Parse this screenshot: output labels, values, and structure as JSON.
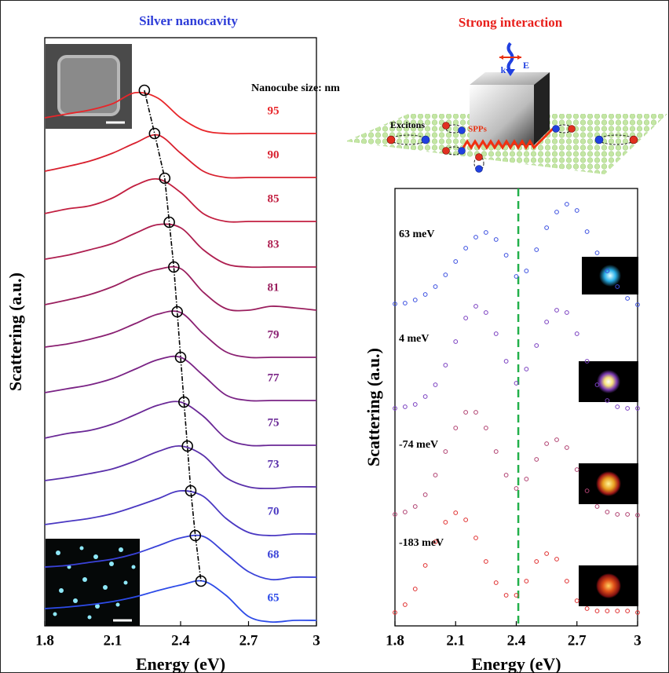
{
  "chart_data": [
    {
      "type": "line",
      "title": "Silver nanocavity",
      "title_color": "#2e3dd8",
      "x_label": "Energy (eV)",
      "y_label": "Scattering (a.u.)",
      "annotations": [
        "Nanocube size: nm"
      ],
      "x": [
        1.8,
        1.9,
        2.0,
        2.1,
        2.2,
        2.3,
        2.4,
        2.5,
        2.6,
        2.7,
        2.8,
        2.9,
        3.0
      ],
      "xlim": [
        1.8,
        3
      ],
      "xticks": [
        1.8,
        2.1,
        2.4,
        2.7,
        3
      ],
      "ylim": [
        0,
        7.49
      ],
      "series": [
        {
          "name": "95",
          "color": "#e8262a",
          "values": [
            6.47,
            6.52,
            6.57,
            6.65,
            6.79,
            6.72,
            6.47,
            6.31,
            6.27,
            6.27,
            6.27,
            6.27,
            6.27
          ]
        },
        {
          "name": "90",
          "color": "#d8202e",
          "values": [
            5.79,
            5.85,
            5.92,
            6.02,
            6.15,
            6.25,
            6.02,
            5.79,
            5.71,
            5.71,
            5.71,
            5.71,
            5.71
          ]
        },
        {
          "name": "85",
          "color": "#c21f40",
          "values": [
            5.25,
            5.31,
            5.35,
            5.45,
            5.61,
            5.69,
            5.52,
            5.25,
            5.15,
            5.15,
            5.15,
            5.15,
            5.15
          ]
        },
        {
          "name": "83",
          "color": "#ae1f50",
          "values": [
            4.67,
            4.72,
            4.79,
            4.87,
            5.0,
            5.11,
            5.07,
            4.79,
            4.61,
            4.57,
            4.57,
            4.57,
            4.57
          ]
        },
        {
          "name": "81",
          "color": "#9a1f5e",
          "values": [
            4.09,
            4.15,
            4.22,
            4.32,
            4.45,
            4.54,
            4.55,
            4.25,
            4.04,
            4.02,
            4.07,
            4.05,
            4.02
          ]
        },
        {
          "name": "79",
          "color": "#8a2072",
          "values": [
            3.55,
            3.59,
            3.65,
            3.73,
            3.85,
            3.97,
            3.99,
            3.72,
            3.49,
            3.42,
            3.42,
            3.42,
            3.42
          ]
        },
        {
          "name": "77",
          "color": "#7a2385",
          "values": [
            2.97,
            3.02,
            3.07,
            3.15,
            3.27,
            3.39,
            3.42,
            3.19,
            2.94,
            2.87,
            2.87,
            2.87,
            2.87
          ]
        },
        {
          "name": "75",
          "color": "#6a2896",
          "values": [
            2.39,
            2.45,
            2.49,
            2.57,
            2.69,
            2.81,
            2.85,
            2.67,
            2.39,
            2.3,
            2.3,
            2.3,
            2.3
          ]
        },
        {
          "name": "73",
          "color": "#5a30aa",
          "values": [
            1.85,
            1.89,
            1.94,
            2.0,
            2.1,
            2.22,
            2.29,
            2.17,
            1.89,
            1.77,
            1.75,
            1.77,
            1.77
          ]
        },
        {
          "name": "70",
          "color": "#4a38c2",
          "values": [
            1.29,
            1.33,
            1.37,
            1.43,
            1.52,
            1.62,
            1.72,
            1.65,
            1.37,
            1.19,
            1.15,
            1.17,
            1.17
          ]
        },
        {
          "name": "68",
          "color": "#3a42d8",
          "values": [
            0.75,
            0.77,
            0.81,
            0.85,
            0.92,
            1.02,
            1.12,
            1.14,
            0.92,
            0.69,
            0.59,
            0.62,
            0.62
          ]
        },
        {
          "name": "65",
          "color": "#2d4be8",
          "values": [
            0.22,
            0.24,
            0.27,
            0.31,
            0.37,
            0.45,
            0.52,
            0.57,
            0.39,
            0.12,
            0.05,
            0.07,
            0.07
          ]
        }
      ],
      "peaks": {
        "x": [
          2.24,
          2.285,
          2.33,
          2.35,
          2.37,
          2.385,
          2.4,
          2.415,
          2.43,
          2.445,
          2.465,
          2.49
        ],
        "values": [
          6.82,
          6.27,
          5.7,
          5.14,
          4.57,
          4.0,
          3.42,
          2.85,
          2.29,
          1.72,
          1.15,
          0.57
        ]
      }
    },
    {
      "type": "scatter",
      "title": "Strong interaction",
      "title_color": "#e8201c",
      "x_label": "Energy (eV)",
      "y_label": "Scattering (a.u.)",
      "annotations": [
        "Excitons",
        "SPPs",
        "k",
        "E"
      ],
      "x": [
        1.8,
        1.85,
        1.9,
        1.95,
        2.0,
        2.05,
        2.1,
        2.15,
        2.2,
        2.25,
        2.3,
        2.35,
        2.4,
        2.45,
        2.5,
        2.55,
        2.6,
        2.65,
        2.7,
        2.75,
        2.8,
        2.85,
        2.9,
        2.95,
        3.0
      ],
      "xlim": [
        1.8,
        3
      ],
      "xticks": [
        1.8,
        2.1,
        2.4,
        2.7,
        3
      ],
      "ylim": [
        0,
        5.57
      ],
      "vline": 2.41,
      "vline_color": "#22b04a",
      "series": [
        {
          "name": "63 meV",
          "color": "#3b4fe0",
          "values": [
            4.1,
            4.11,
            4.15,
            4.22,
            4.32,
            4.47,
            4.64,
            4.81,
            4.95,
            5.01,
            4.92,
            4.72,
            4.45,
            4.52,
            4.79,
            5.07,
            5.27,
            5.37,
            5.29,
            5.02,
            4.75,
            4.52,
            4.32,
            4.17,
            4.09
          ]
        },
        {
          "name": "4 meV",
          "color": "#7a3fc0",
          "values": [
            2.77,
            2.79,
            2.82,
            2.92,
            3.07,
            3.32,
            3.62,
            3.92,
            4.07,
            3.99,
            3.72,
            3.37,
            3.09,
            3.27,
            3.57,
            3.87,
            4.02,
            3.99,
            3.72,
            3.37,
            3.07,
            2.87,
            2.79,
            2.77,
            2.77
          ]
        },
        {
          "name": "-74 meV",
          "color": "#b04070",
          "values": [
            1.42,
            1.45,
            1.52,
            1.67,
            1.92,
            2.22,
            2.52,
            2.72,
            2.72,
            2.52,
            2.22,
            1.92,
            1.75,
            1.87,
            2.12,
            2.32,
            2.37,
            2.27,
            1.99,
            1.72,
            1.52,
            1.45,
            1.42,
            1.42,
            1.41
          ]
        },
        {
          "name": "-183 meV",
          "color": "#e03030",
          "values": [
            0.17,
            0.27,
            0.47,
            0.77,
            1.07,
            1.32,
            1.44,
            1.35,
            1.12,
            0.82,
            0.55,
            0.39,
            0.39,
            0.57,
            0.82,
            0.92,
            0.85,
            0.57,
            0.32,
            0.22,
            0.19,
            0.19,
            0.19,
            0.19,
            0.17
          ]
        }
      ]
    }
  ]
}
